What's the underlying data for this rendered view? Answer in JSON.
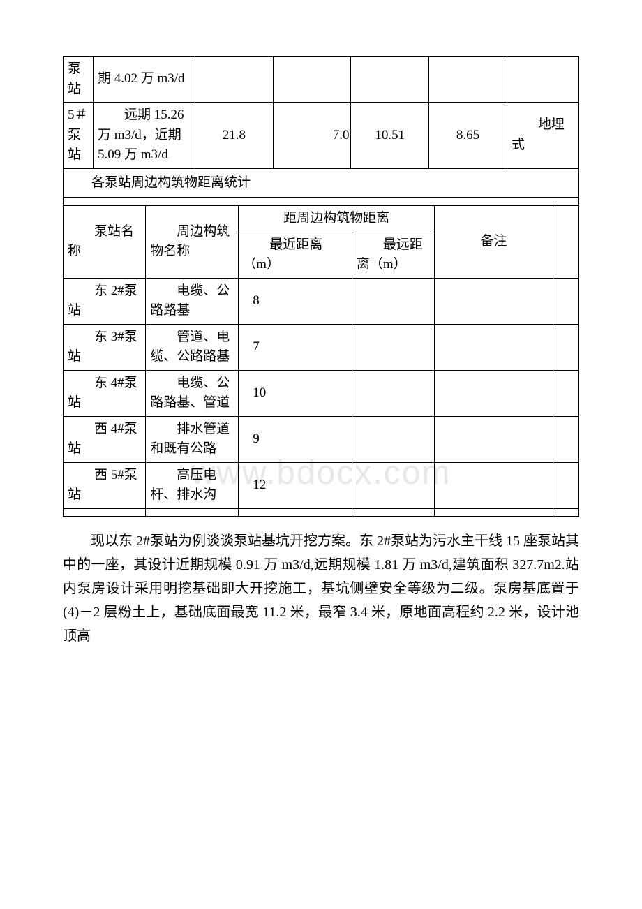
{
  "table1": {
    "row1": {
      "c0": "泵站",
      "c1": "期 4.02 万 m3/d"
    },
    "row2": {
      "c0": "5＃泵站",
      "c1": "远期 15.26 万 m3/d，近期 5.09 万 m3/d",
      "c2": "21.8",
      "c3": "7.0",
      "c4": "10.51",
      "c5": "8.65",
      "c6": "地埋式"
    }
  },
  "table2_title": "各泵站周边构筑物距离统计",
  "table2": {
    "header": {
      "name": "泵站名称",
      "structure": "周边构筑物名称",
      "distance": "距周边构筑物距离",
      "nearest": "最近距离（m）",
      "farthest": "最远距离（m）",
      "remark": "备注"
    },
    "rows": [
      {
        "name": "东 2#泵站",
        "structure": "电缆、公路路基",
        "nearest": "8",
        "farthest": "",
        "remark": ""
      },
      {
        "name": "东 3#泵站",
        "structure": "管道、电缆、公路路基",
        "nearest": "7",
        "farthest": "",
        "remark": ""
      },
      {
        "name": "东 4#泵站",
        "structure": "电缆、公路路基、管道",
        "nearest": "10",
        "farthest": "",
        "remark": ""
      },
      {
        "name": "西 4#泵站",
        "structure": "排水管道和既有公路",
        "nearest": "9",
        "farthest": "",
        "remark": ""
      },
      {
        "name": "西 5#泵站",
        "structure": "高压电杆、排水沟",
        "nearest": "12",
        "farthest": "",
        "remark": ""
      }
    ]
  },
  "body_text": "现以东 2#泵站为例谈谈泵站基坑开挖方案。东 2#泵站为污水主干线 15 座泵站其中的一座，其设计近期规模 0.91 万 m3/d,远期规模 1.81 万 m3/d,建筑面积 327.7m2.站内泵房设计采用明挖基础即大开挖施工，基坑侧壁安全等级为二级。泵房基底置于(4)－2 层粉土上，基础底面最宽 11.2 米，最窄 3.4 米，原地面高程约 2.2 米，设计池顶高",
  "watermark": "www.bdocx.com"
}
